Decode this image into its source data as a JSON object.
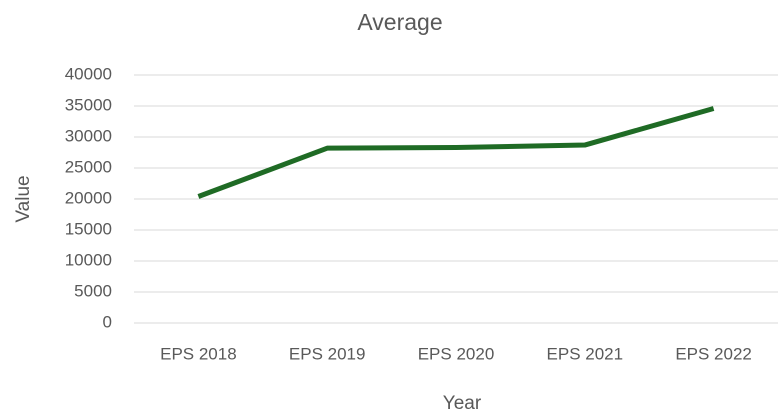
{
  "chart_data": {
    "type": "line",
    "title": "Average",
    "x_label": "Year",
    "y_label": "Value",
    "categories": [
      "EPS 2018",
      "EPS 2019",
      "EPS 2020",
      "EPS 2021",
      "EPS 2022"
    ],
    "series": [
      {
        "name": "Average",
        "color": "#1f6b25",
        "values": [
          20400,
          28200,
          28300,
          28700,
          34600
        ]
      }
    ],
    "ylim": [
      0,
      40000
    ],
    "yticks": [
      0,
      5000,
      10000,
      15000,
      20000,
      25000,
      30000,
      35000,
      40000
    ],
    "grid": true
  }
}
